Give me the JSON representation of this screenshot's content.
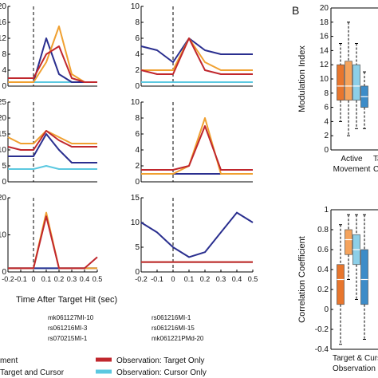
{
  "figure": {
    "panel_b_label": "B",
    "x_axis_title": "Time After Target Hit (sec)",
    "unit_labels_col1": [
      "mk061127MI-10",
      "rs061216MI-3",
      "rs070215MI-1"
    ],
    "unit_labels_col2": [
      "rs061216MI-1",
      "rs061216MI-15",
      "mk061221PMd-20"
    ],
    "legend": {
      "left_partial_1": "ment",
      "left_partial_2": "Target and Cursor",
      "items": [
        {
          "label": "Observation: Target Only",
          "color": "#c0272d"
        },
        {
          "label": "Observation: Cursor Only",
          "color": "#5bc8e0"
        }
      ]
    }
  },
  "colors": {
    "active_movement": "#f0a030",
    "target_and_cursor": "#2a2f8f",
    "target_only": "#c0272d",
    "cursor_only": "#5bc8e0",
    "box_orange": "#e8762d",
    "box_light_orange": "#f5a35c",
    "box_light_blue": "#8ccfe8",
    "box_blue": "#3d8cc8"
  },
  "chart_data": [
    {
      "type": "line",
      "panel": "A1",
      "x": [
        -0.2,
        -0.1,
        0,
        0.1,
        0.2,
        0.3,
        0.4,
        0.5
      ],
      "xlim": [
        -0.2,
        0.5
      ],
      "ylim": [
        0,
        20
      ],
      "yticks": [
        0,
        4,
        8,
        12,
        16,
        20
      ],
      "xticks": [],
      "series": [
        {
          "key": "active_movement",
          "values": [
            1,
            1,
            1,
            6,
            15,
            3,
            1,
            1
          ]
        },
        {
          "key": "target_and_cursor",
          "values": [
            1,
            1,
            1,
            12,
            3,
            1,
            1,
            1
          ]
        },
        {
          "key": "target_only",
          "values": [
            2,
            2,
            2,
            8,
            10,
            2,
            1,
            1
          ]
        },
        {
          "key": "cursor_only",
          "values": [
            1,
            1,
            1,
            1,
            1,
            1,
            1,
            1
          ]
        }
      ]
    },
    {
      "type": "line",
      "panel": "A2",
      "x": [
        -0.2,
        -0.1,
        0,
        0.1,
        0.2,
        0.3,
        0.4,
        0.5
      ],
      "xlim": [
        -0.2,
        0.5
      ],
      "ylim": [
        0,
        10
      ],
      "yticks": [
        0,
        2,
        4,
        6,
        8,
        10
      ],
      "xticks": [],
      "series": [
        {
          "key": "active_movement",
          "values": [
            2,
            2,
            2,
            6,
            3,
            2,
            2,
            2
          ]
        },
        {
          "key": "target_and_cursor",
          "values": [
            5,
            4.5,
            3,
            6,
            4.5,
            4,
            4,
            4
          ]
        },
        {
          "key": "target_only",
          "values": [
            2,
            1.5,
            1.5,
            6,
            2,
            1.5,
            1.5,
            1.5
          ]
        },
        {
          "key": "cursor_only",
          "values": [
            0.5,
            0.5,
            0.5,
            0.5,
            0.5,
            0.5,
            0.5,
            0.5
          ]
        }
      ]
    },
    {
      "type": "line",
      "panel": "A3",
      "x": [
        -0.2,
        -0.1,
        0,
        0.1,
        0.2,
        0.3,
        0.4,
        0.5
      ],
      "xlim": [
        -0.2,
        0.5
      ],
      "ylim": [
        0,
        25
      ],
      "yticks": [
        0,
        5,
        10,
        15,
        20,
        25
      ],
      "xticks": [],
      "series": [
        {
          "key": "active_movement",
          "values": [
            14,
            12,
            12,
            16,
            14,
            12,
            12,
            12
          ]
        },
        {
          "key": "target_and_cursor",
          "values": [
            8,
            8,
            8,
            15,
            10,
            6,
            6,
            6
          ]
        },
        {
          "key": "target_only",
          "values": [
            11,
            10,
            10,
            16,
            13,
            11,
            11,
            11
          ]
        },
        {
          "key": "cursor_only",
          "values": [
            4,
            4,
            4,
            5,
            4,
            4,
            4,
            4
          ]
        }
      ]
    },
    {
      "type": "line",
      "panel": "A4",
      "x": [
        -0.2,
        -0.1,
        0,
        0.1,
        0.2,
        0.3,
        0.4,
        0.5
      ],
      "xlim": [
        -0.2,
        0.5
      ],
      "ylim": [
        0,
        10
      ],
      "yticks": [
        0,
        2,
        4,
        6,
        8,
        10
      ],
      "xticks": [],
      "series": [
        {
          "key": "active_movement",
          "values": [
            1,
            1,
            1,
            2,
            8,
            1,
            1,
            1
          ]
        },
        {
          "key": "target_and_cursor",
          "values": [
            1,
            1,
            1,
            1,
            1,
            1,
            1,
            1
          ]
        },
        {
          "key": "target_only",
          "values": [
            1.5,
            1.5,
            1.5,
            2,
            7,
            1.5,
            1.5,
            1.5
          ]
        },
        {
          "key": "cursor_only",
          "values": [
            1,
            1,
            1,
            1,
            1,
            1,
            1,
            1
          ]
        }
      ]
    },
    {
      "type": "line",
      "panel": "A5",
      "x": [
        -0.2,
        -0.1,
        0,
        0.1,
        0.2,
        0.3,
        0.4,
        0.5
      ],
      "xlim": [
        -0.2,
        0.5
      ],
      "ylim": [
        0,
        20
      ],
      "yticks": [
        0,
        10,
        20
      ],
      "xticks": [
        -0.2,
        -0.1,
        0,
        0.1,
        0.2,
        0.3,
        0.4,
        0.5
      ],
      "series": [
        {
          "key": "active_movement",
          "values": [
            1,
            1,
            1,
            16,
            1,
            1,
            1,
            1
          ]
        },
        {
          "key": "target_and_cursor",
          "values": [
            1,
            1,
            1,
            1,
            1,
            1,
            1,
            1
          ]
        },
        {
          "key": "target_only",
          "values": [
            1,
            1,
            1,
            15,
            1,
            1,
            1,
            4
          ]
        },
        {
          "key": "cursor_only",
          "values": [
            1,
            1,
            1,
            1,
            1,
            1,
            1,
            1
          ]
        }
      ]
    },
    {
      "type": "line",
      "panel": "A6",
      "x": [
        -0.2,
        -0.1,
        0,
        0.1,
        0.2,
        0.3,
        0.4,
        0.5
      ],
      "xlim": [
        -0.2,
        0.5
      ],
      "ylim": [
        0,
        15
      ],
      "yticks": [
        0,
        5,
        10,
        15
      ],
      "xticks": [
        -0.2,
        -0.1,
        0,
        0.1,
        0.2,
        0.3,
        0.4,
        0.5
      ],
      "series": [
        {
          "key": "active_movement",
          "values": [
            2,
            2,
            2,
            2,
            2,
            2,
            2,
            2
          ]
        },
        {
          "key": "target_and_cursor",
          "values": [
            10,
            8,
            5,
            3,
            4,
            8,
            12,
            10
          ]
        },
        {
          "key": "target_only",
          "values": [
            2,
            2,
            2,
            2,
            2,
            2,
            2,
            2
          ]
        },
        {
          "key": "cursor_only",
          "values": [
            2,
            2,
            2,
            2,
            2,
            2,
            2,
            2
          ]
        }
      ]
    },
    {
      "type": "box",
      "panel": "B-top",
      "ylabel": "Modulation Index",
      "ylim": [
        0,
        20
      ],
      "yticks": [
        0,
        2,
        4,
        6,
        8,
        10,
        12,
        14,
        16,
        18,
        20
      ],
      "group_labels": [
        "Active",
        "Movement",
        "Ta",
        "C"
      ],
      "boxes": [
        {
          "key": "box_orange",
          "min": 4,
          "q1": 7,
          "median": 9,
          "q3": 12,
          "max": 15
        },
        {
          "key": "box_light_orange",
          "min": 2,
          "q1": 7,
          "median": 9,
          "q3": 12.5,
          "max": 18
        },
        {
          "key": "box_light_blue",
          "min": 3,
          "q1": 7,
          "median": 9,
          "q3": 12,
          "max": 15
        },
        {
          "key": "box_blue",
          "min": 3,
          "q1": 6,
          "median": 7.5,
          "q3": 9,
          "max": 11
        }
      ]
    },
    {
      "type": "box",
      "panel": "B-bottom",
      "ylabel": "Correlation Coefficient",
      "ylim": [
        -0.4,
        1
      ],
      "yticks": [
        -0.4,
        -0.2,
        0,
        0.2,
        0.4,
        0.6,
        0.8,
        1
      ],
      "group_labels": [
        "Target & Cursor",
        "Observation"
      ],
      "boxes": [
        {
          "key": "box_orange",
          "min": -0.35,
          "q1": 0.05,
          "median": 0.3,
          "q3": 0.45,
          "max": 0.85
        },
        {
          "key": "box_light_orange",
          "min": 0.3,
          "q1": 0.55,
          "median": 0.7,
          "q3": 0.8,
          "max": 0.95
        },
        {
          "key": "box_light_blue",
          "min": 0.1,
          "q1": 0.45,
          "median": 0.6,
          "q3": 0.75,
          "max": 0.95
        },
        {
          "key": "box_blue",
          "min": -0.3,
          "q1": 0.05,
          "median": 0.3,
          "q3": 0.6,
          "max": 0.95
        }
      ]
    }
  ]
}
